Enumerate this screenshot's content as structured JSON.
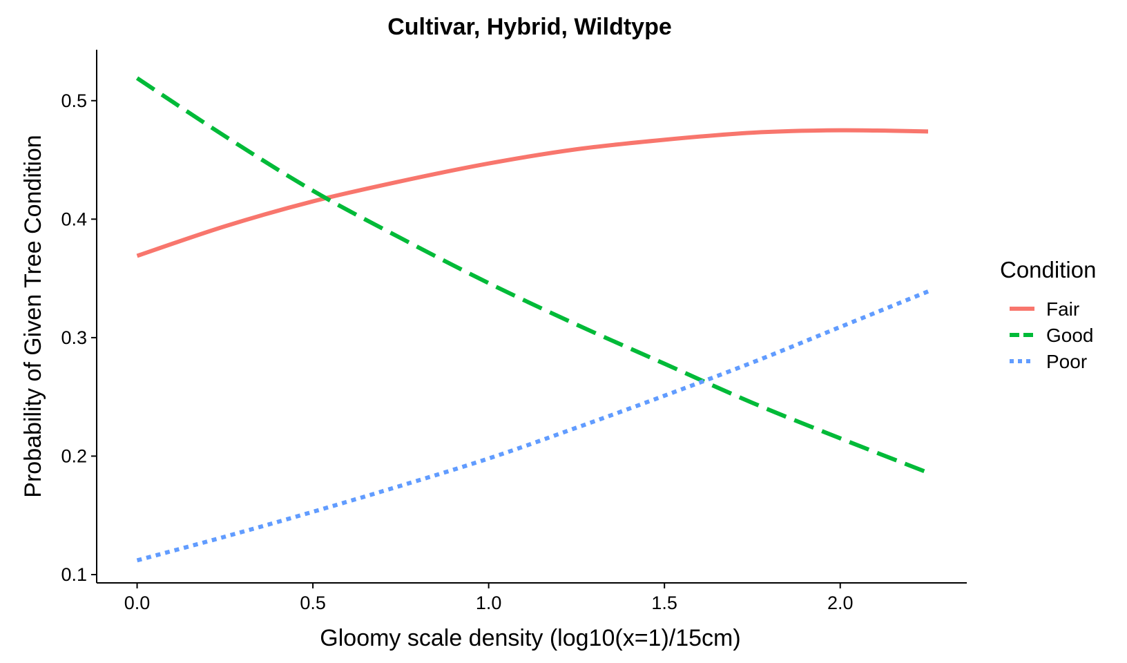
{
  "chart_data": {
    "type": "line",
    "title": "Cultivar, Hybrid, Wildtype",
    "xlabel": "Gloomy scale density (log10(x=1)/15cm)",
    "ylabel": "Probability of Given Tree Condition",
    "xlim": [
      -0.115,
      2.36
    ],
    "ylim": [
      0.093,
      0.543
    ],
    "x_ticks": [
      0.0,
      0.5,
      1.0,
      1.5,
      2.0
    ],
    "x_tick_labels": [
      "0.0",
      "0.5",
      "1.0",
      "1.5",
      "2.0"
    ],
    "y_ticks": [
      0.1,
      0.2,
      0.3,
      0.4,
      0.5
    ],
    "y_tick_labels": [
      "0.1",
      "0.2",
      "0.3",
      "0.4",
      "0.5"
    ],
    "grid": false,
    "legend": {
      "title": "Condition",
      "position": "right"
    },
    "x": [
      0.0,
      0.25,
      0.5,
      0.75,
      1.0,
      1.25,
      1.5,
      1.75,
      2.0,
      2.25
    ],
    "series": [
      {
        "name": "Fair",
        "color": "#F8766D",
        "dash": "solid",
        "values": [
          0.369,
          0.394,
          0.415,
          0.432,
          0.447,
          0.459,
          0.467,
          0.473,
          0.475,
          0.474
        ]
      },
      {
        "name": "Good",
        "color": "#00BA38",
        "dash": "dashed",
        "values": [
          0.519,
          0.47,
          0.424,
          0.384,
          0.346,
          0.311,
          0.278,
          0.245,
          0.215,
          0.186
        ]
      },
      {
        "name": "Poor",
        "color": "#619CFF",
        "dash": "dotted",
        "values": [
          0.112,
          0.132,
          0.153,
          0.175,
          0.198,
          0.224,
          0.251,
          0.279,
          0.309,
          0.339
        ]
      }
    ]
  }
}
